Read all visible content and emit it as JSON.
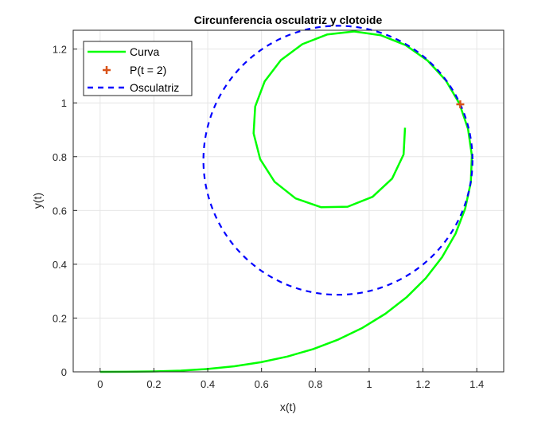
{
  "chart_data": {
    "type": "line",
    "title": "Circunferencia osculatriz y clotoide",
    "xlabel": "x(t)",
    "ylabel": "y(t)",
    "xlim": [
      -0.1,
      1.5
    ],
    "ylim": [
      0,
      1.27
    ],
    "xticks": [
      "0",
      "0.2",
      "0.4",
      "0.6",
      "0.8",
      "1",
      "1.2",
      "1.4"
    ],
    "xtick_values": [
      0,
      0.2,
      0.4,
      0.6,
      0.8,
      1,
      1.2,
      1.4
    ],
    "yticks": [
      "0",
      "0.2",
      "0.4",
      "0.6",
      "0.8",
      "1",
      "1.2"
    ],
    "ytick_values": [
      0,
      0.2,
      0.4,
      0.6,
      0.8,
      1,
      1.2
    ],
    "grid": true,
    "legend_position": "top-left",
    "series": [
      {
        "name": "Curva",
        "kind": "clothoid",
        "definition": "x(t)=∫cos(s²/2)ds, y(t)=∫sin(s²/2)ds",
        "t_range": [
          0,
          4
        ],
        "n_points": 41,
        "color": "#00ff00",
        "style": "solid"
      },
      {
        "name": "P(t = 2)",
        "kind": "point",
        "x": 1.3386,
        "y": 0.9946,
        "color": "#d95319",
        "marker": "+"
      },
      {
        "name": "Osculatriz",
        "kind": "circle",
        "center": [
          0.884,
          0.7866
        ],
        "radius": 0.5,
        "color": "#0000ff",
        "style": "dashed"
      }
    ]
  }
}
